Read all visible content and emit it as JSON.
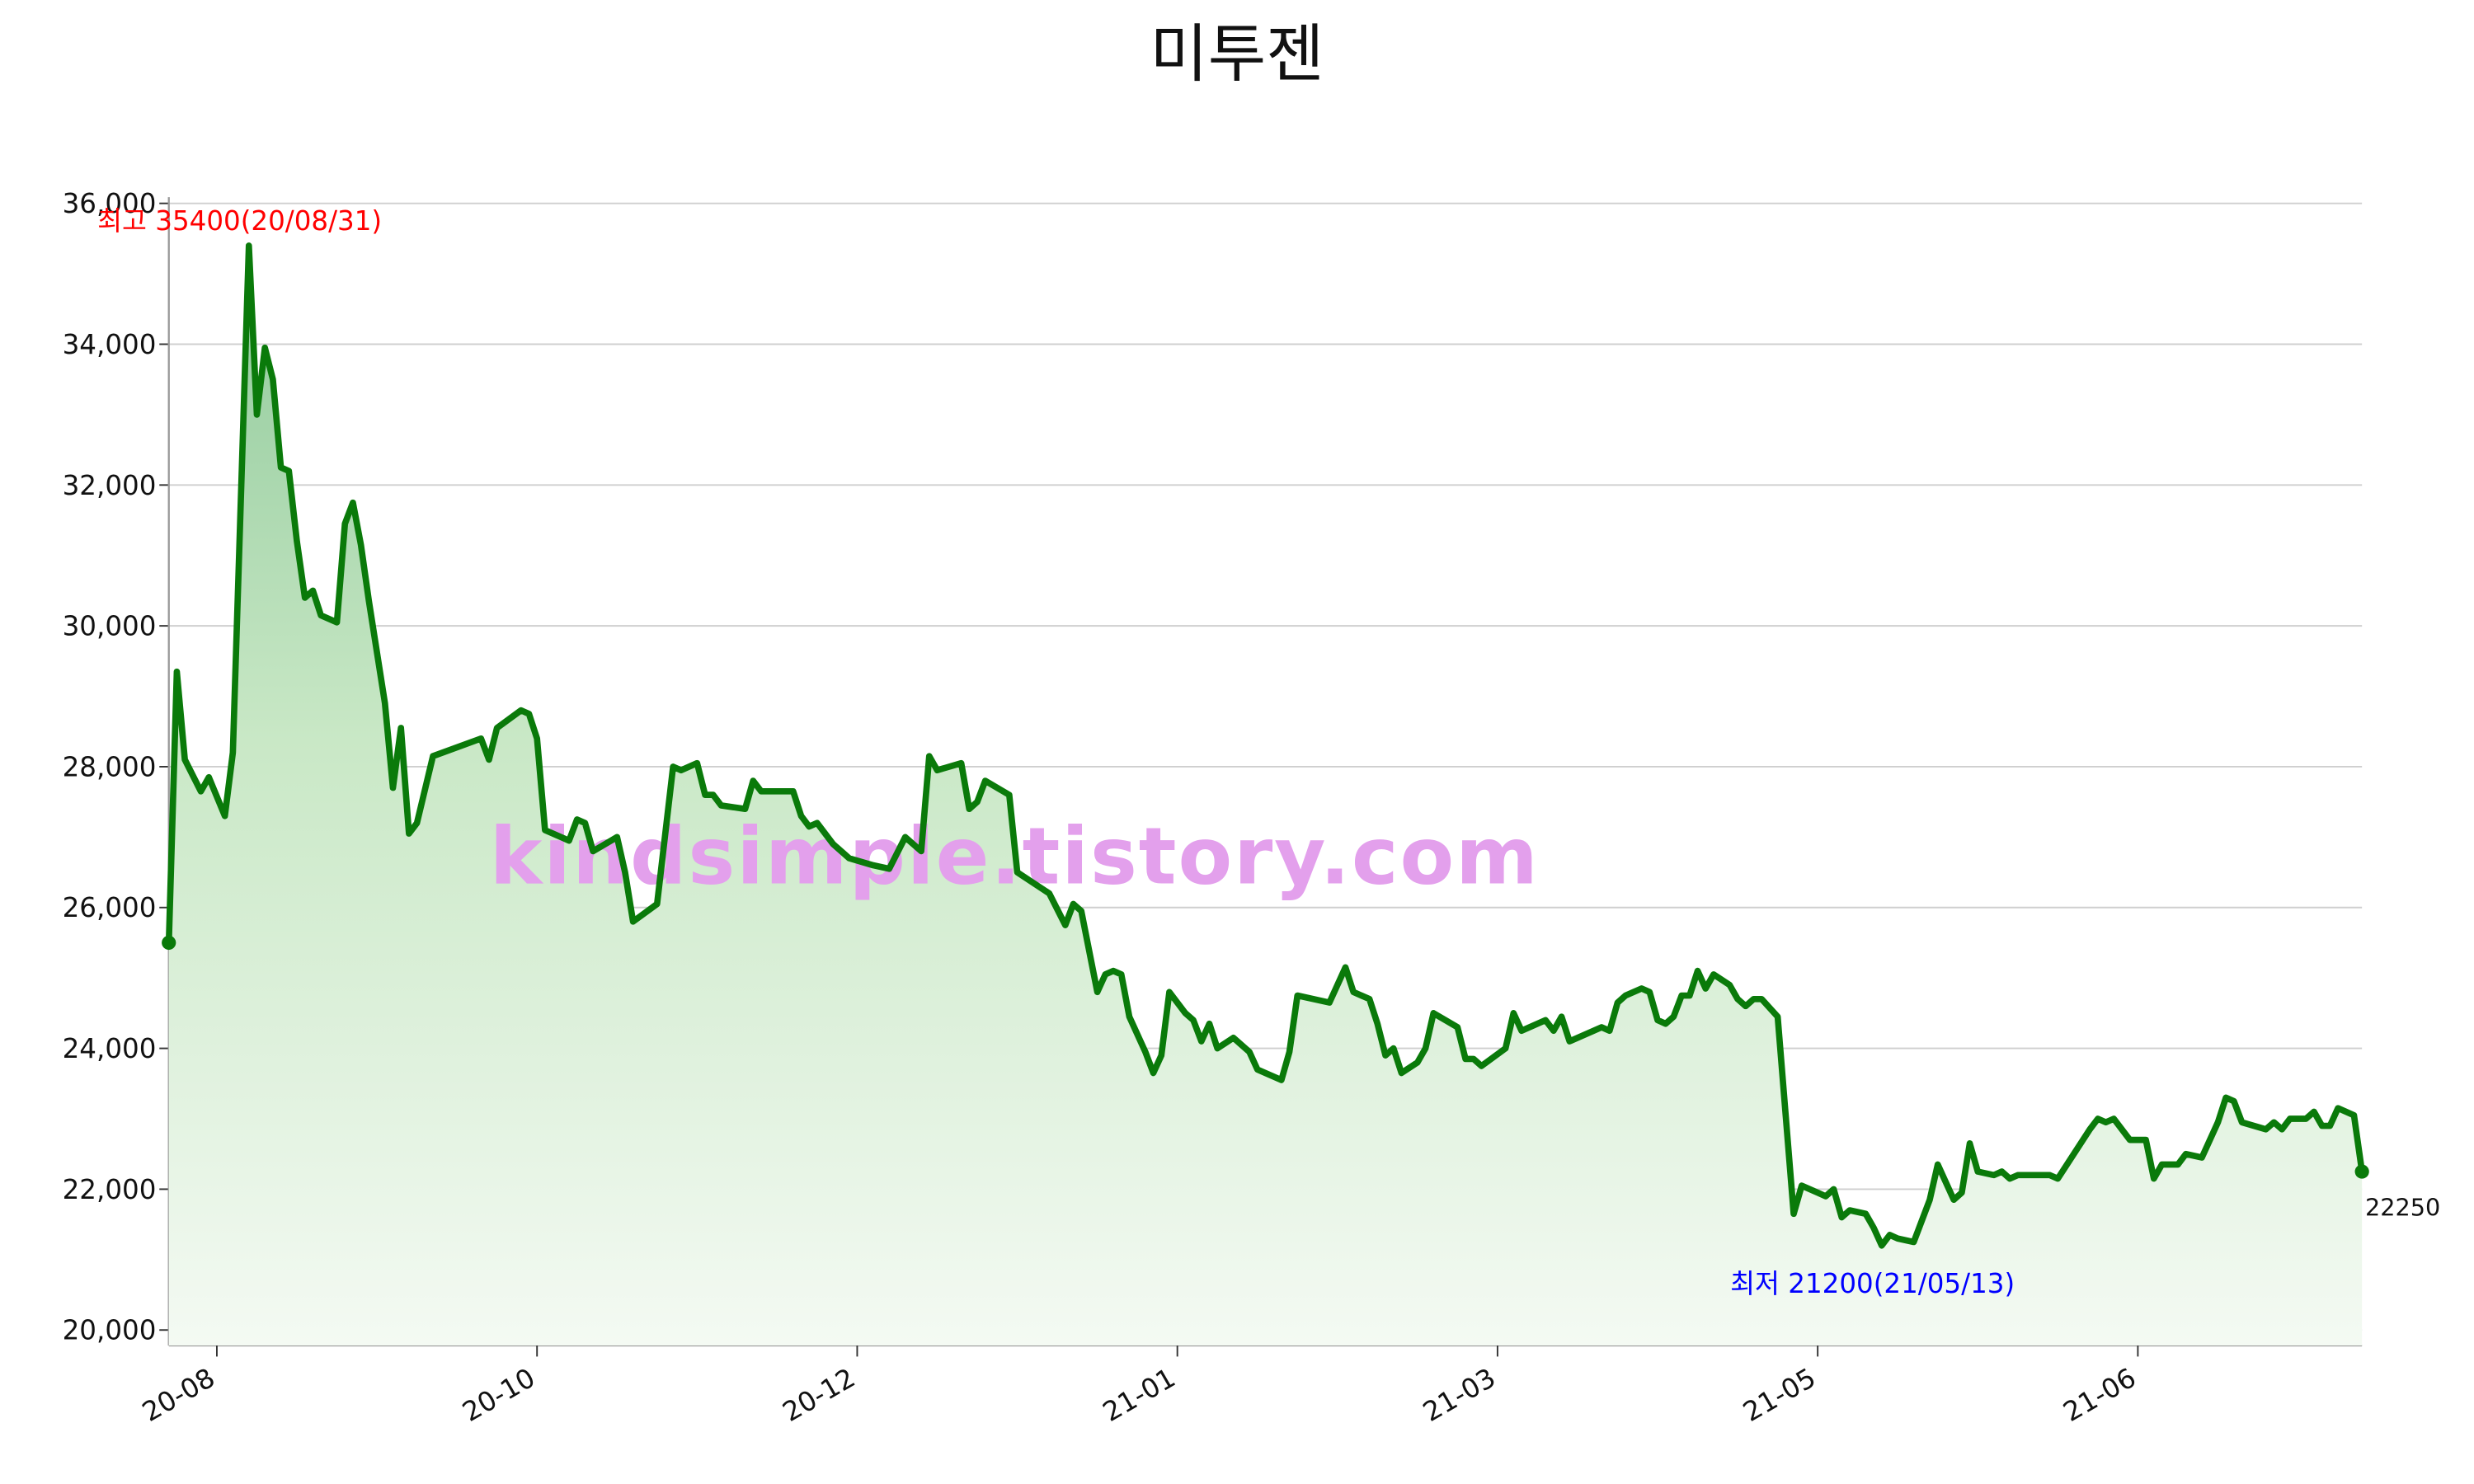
{
  "chart_data": {
    "type": "line",
    "title": "미투젠",
    "watermark": "kindsimple.tistory.com",
    "x": [
      0,
      1,
      2,
      4,
      5,
      7,
      8,
      10,
      11,
      12,
      13,
      14,
      15,
      16,
      17,
      18,
      19,
      21,
      22,
      23,
      24,
      25,
      27,
      28,
      29,
      30,
      31,
      33,
      39,
      40,
      41,
      44,
      45,
      46,
      47,
      50,
      51,
      52,
      53,
      56,
      57,
      58,
      61,
      63,
      64,
      66,
      67,
      68,
      69,
      72,
      73,
      74,
      78,
      79,
      80,
      81,
      83,
      85,
      88,
      90,
      92,
      94,
      95,
      96,
      99,
      100,
      101,
      102,
      105,
      106,
      110,
      112,
      113,
      114,
      116,
      117,
      118,
      119,
      120,
      122,
      123,
      124,
      125,
      127,
      128,
      129,
      130,
      131,
      133,
      135,
      136,
      139,
      140,
      141,
      145,
      147,
      148,
      150,
      151,
      152,
      153,
      154,
      156,
      157,
      158,
      161,
      162,
      163,
      164,
      167,
      168,
      169,
      172,
      173,
      174,
      175,
      179,
      180,
      181,
      182,
      184,
      185,
      186,
      187,
      188,
      189,
      190,
      191,
      192,
      193,
      195,
      196,
      197,
      198,
      199,
      201,
      203,
      204,
      206,
      207,
      208,
      209,
      210,
      212,
      213,
      214,
      215,
      216,
      218,
      220,
      221,
      223,
      224,
      225,
      226,
      228,
      229,
      230,
      231,
      235,
      236,
      240,
      241,
      242,
      243,
      245,
      247,
      248,
      249,
      251,
      252,
      254,
      256,
      257,
      258,
      259,
      262,
      263,
      264,
      265,
      267,
      268,
      269,
      270,
      271,
      273,
      274
    ],
    "series": [
      {
        "color": "#0a7a0a",
        "values": [
          25500,
          29350,
          28100,
          27650,
          27850,
          27300,
          28200,
          35400,
          33000,
          33950,
          33500,
          32250,
          32200,
          31200,
          30400,
          30500,
          30150,
          30050,
          31450,
          31750,
          31150,
          30350,
          28900,
          27700,
          28550,
          27050,
          27200,
          28150,
          28400,
          28100,
          28550,
          28800,
          28750,
          28400,
          27100,
          26950,
          27250,
          27200,
          26800,
          27000,
          26500,
          25800,
          26050,
          28000,
          27950,
          28050,
          27600,
          27600,
          27450,
          27400,
          27800,
          27650,
          27650,
          27300,
          27150,
          27200,
          26900,
          26700,
          26600,
          26550,
          27000,
          26800,
          28150,
          27950,
          28050,
          27400,
          27500,
          27800,
          27600,
          26500,
          26200,
          25750,
          26050,
          25950,
          24800,
          25050,
          25100,
          25050,
          24450,
          23950,
          23650,
          23900,
          24800,
          24500,
          24400,
          24100,
          24350,
          24000,
          24150,
          23950,
          23700,
          23550,
          23950,
          24750,
          24650,
          25150,
          24800,
          24700,
          24350,
          23900,
          24000,
          23650,
          23800,
          24000,
          24500,
          24300,
          23850,
          23850,
          23750,
          24000,
          24500,
          24250,
          24400,
          24250,
          24450,
          24100,
          24300,
          24250,
          24650,
          24750,
          24850,
          24800,
          24400,
          24350,
          24450,
          24750,
          24750,
          25100,
          24850,
          25050,
          24900,
          24700,
          24600,
          24700,
          24700,
          24450,
          21650,
          22050,
          21950,
          21900,
          22000,
          21600,
          21700,
          21650,
          21450,
          21200,
          21350,
          21300,
          21250,
          21850,
          22350,
          21850,
          21950,
          22650,
          22250,
          22200,
          22250,
          22150,
          22200,
          22200,
          22150,
          22850,
          23000,
          22950,
          23000,
          22700,
          22700,
          22150,
          22350,
          22350,
          22500,
          22450,
          22950,
          23300,
          23250,
          22950,
          22850,
          22950,
          22850,
          23000,
          23000,
          23100,
          22900,
          22900,
          23150,
          23050,
          22250
        ]
      }
    ],
    "annotations": [
      {
        "text": "최고 35400(20/08/31)",
        "color": "#ff0000"
      },
      {
        "text": "최저 21200(21/05/13)",
        "color": "#0000ff"
      }
    ],
    "end_label": "22250",
    "xlim": [
      0,
      274
    ],
    "xticks": [
      {
        "value": 6,
        "label": "20-08"
      },
      {
        "value": 46,
        "label": "20-10"
      },
      {
        "value": 86,
        "label": "20-12"
      },
      {
        "value": 126,
        "label": "21-01"
      },
      {
        "value": 166,
        "label": "21-03"
      },
      {
        "value": 206,
        "label": "21-05"
      },
      {
        "value": 246,
        "label": "21-06"
      }
    ],
    "ylim": [
      19780,
      36200
    ],
    "yticks": [
      {
        "value": 20000,
        "label": "20,000"
      },
      {
        "value": 22000,
        "label": "22,000"
      },
      {
        "value": 24000,
        "label": "24,000"
      },
      {
        "value": 26000,
        "label": "26,000"
      },
      {
        "value": 28000,
        "label": "28,000"
      },
      {
        "value": 30000,
        "label": "30,000"
      },
      {
        "value": 32000,
        "label": "32,000"
      },
      {
        "value": 34000,
        "label": "34,000"
      },
      {
        "value": 36000,
        "label": "36,000"
      }
    ],
    "grid": true
  }
}
